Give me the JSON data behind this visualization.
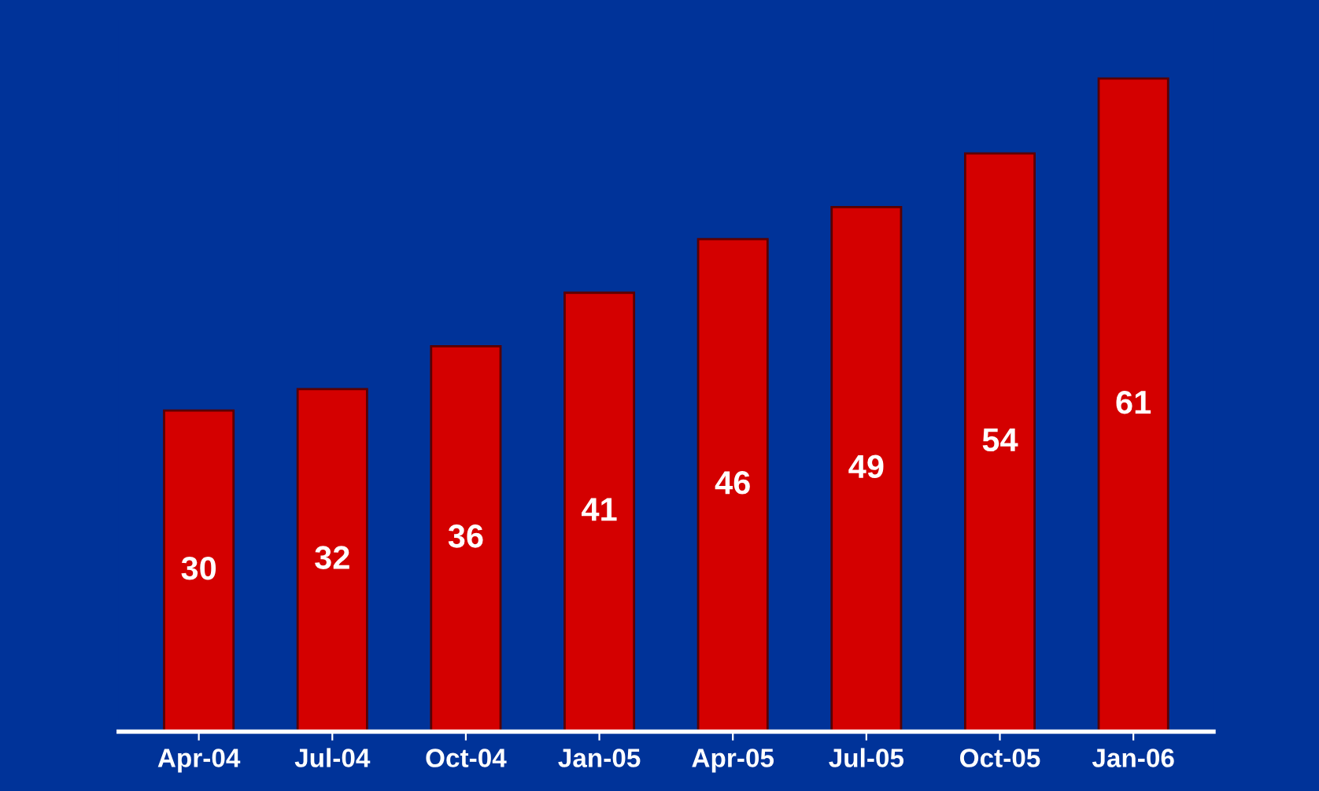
{
  "chart_data": {
    "type": "bar",
    "categories": [
      "Apr-04",
      "Jul-04",
      "Oct-04",
      "Jan-05",
      "Apr-05",
      "Jul-05",
      "Oct-05",
      "Jan-06"
    ],
    "values": [
      30,
      32,
      36,
      41,
      46,
      49,
      54,
      61
    ],
    "color": "#d40000",
    "data_labels": true,
    "grid": false,
    "legend": false,
    "tick_labels": "x"
  }
}
